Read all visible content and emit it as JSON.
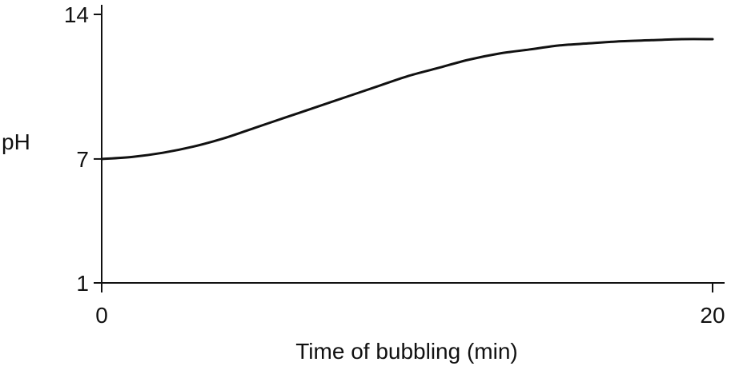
{
  "chart_data": {
    "type": "line",
    "title": "",
    "xlabel": "Time of bubbling (min)",
    "ylabel": "pH",
    "xlim": [
      0,
      20
    ],
    "ylim": [
      1,
      14
    ],
    "x_ticks": [
      "0",
      "20"
    ],
    "y_ticks": [
      "1",
      "7",
      "14"
    ],
    "grid": false,
    "series": [
      {
        "color": "#111111",
        "x": [
          0,
          1,
          2,
          3,
          4,
          5,
          6,
          7,
          8,
          9,
          10,
          11,
          12,
          13,
          14,
          15,
          16,
          17,
          18,
          19,
          20
        ],
        "y": [
          7.0,
          7.1,
          7.3,
          7.6,
          8.0,
          8.5,
          9.0,
          9.5,
          10.0,
          10.5,
          11.0,
          11.4,
          11.8,
          12.1,
          12.3,
          12.5,
          12.6,
          12.7,
          12.75,
          12.8,
          12.8
        ]
      }
    ]
  }
}
